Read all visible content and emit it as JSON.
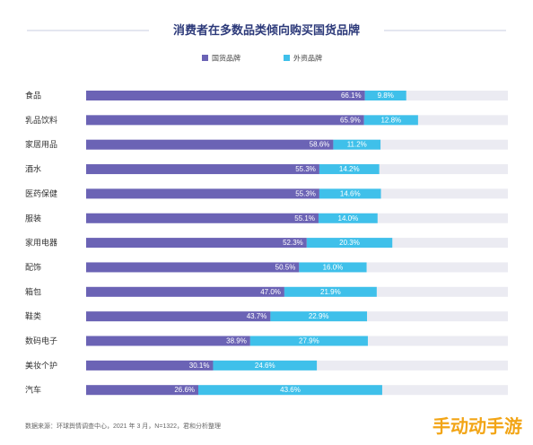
{
  "chart_data": {
    "type": "bar",
    "stacked": true,
    "orientation": "horizontal",
    "title": "消费者在多数品类倾向购买国货品牌",
    "categories": [
      "食品",
      "乳品饮料",
      "家居用品",
      "酒水",
      "医药保健",
      "服装",
      "家用电器",
      "配饰",
      "箱包",
      "鞋类",
      "数码电子",
      "美妆个护",
      "汽车"
    ],
    "series": [
      {
        "name": "国货品牌",
        "color": "#6b63b5",
        "values": [
          66.1,
          65.9,
          58.6,
          55.3,
          55.3,
          55.1,
          52.3,
          50.5,
          47.0,
          43.7,
          38.9,
          30.1,
          26.6
        ],
        "labels": [
          "66.1%",
          "65.9%",
          "58.6%",
          "55.3%",
          "55.3%",
          "55.1%",
          "52.3%",
          "50.5%",
          "47.0%",
          "43.7%",
          "38.9%",
          "30.1%",
          "26.6%"
        ]
      },
      {
        "name": "外资品牌",
        "color": "#3fc0ea",
        "values": [
          9.8,
          12.8,
          11.2,
          14.2,
          14.6,
          14.0,
          20.3,
          16.0,
          21.9,
          22.9,
          27.9,
          24.6,
          43.6
        ],
        "labels": [
          "9.8%",
          "12.8%",
          "11.2%",
          "14.2%",
          "14.6%",
          "14.0%",
          "20.3%",
          "16.0%",
          "21.9%",
          "22.9%",
          "27.9%",
          "24.6%",
          "43.6%"
        ]
      }
    ],
    "xlim": [
      0,
      100
    ],
    "track_color": "#ebebf2",
    "legend_position": "top-center",
    "grid": false
  },
  "source_note": "数据来源：环球舆情调查中心，2021 年 3 月，N=1322，君和分析整理",
  "watermark": "手动动手游"
}
